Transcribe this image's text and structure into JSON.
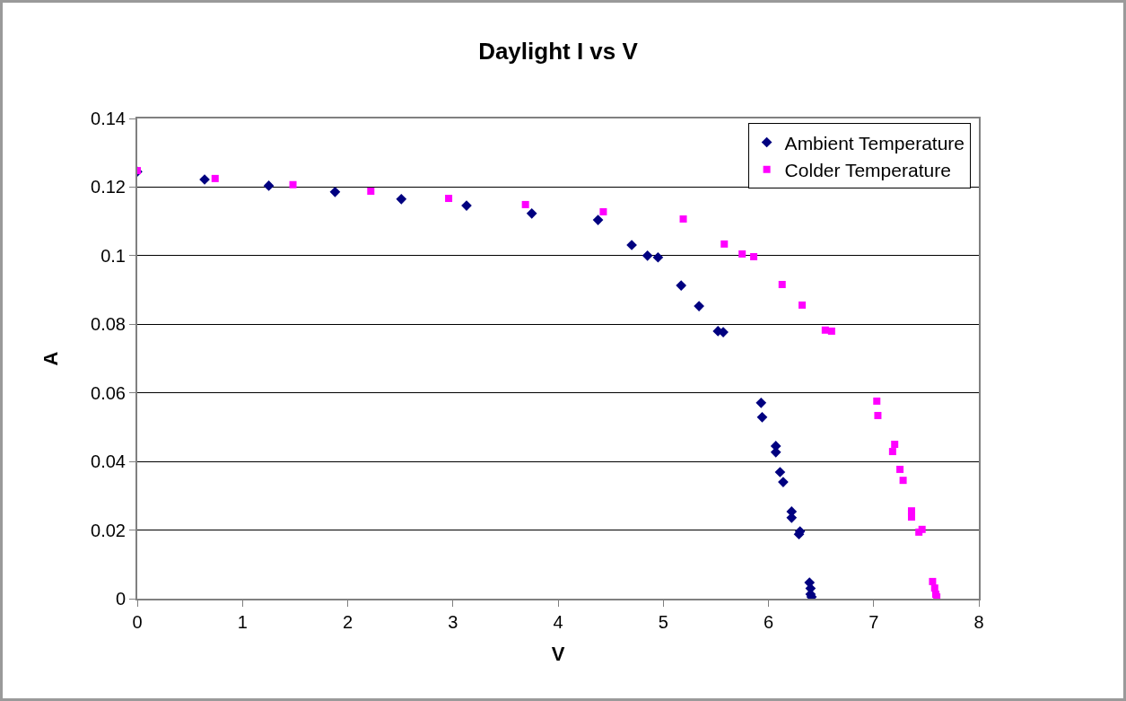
{
  "chart_data": {
    "type": "scatter",
    "title": "Daylight I vs V",
    "xlabel": "V",
    "ylabel": "A",
    "xlim": [
      0,
      8
    ],
    "xticks": [
      0,
      1,
      2,
      3,
      4,
      5,
      6,
      7,
      8
    ],
    "ylim": [
      0,
      0.14
    ],
    "yticks": [
      0,
      0.02,
      0.04,
      0.06,
      0.08,
      0.1,
      0.12,
      0.14
    ],
    "grid": "y",
    "legend": "top right",
    "series": [
      {
        "name": "Ambient Temperature",
        "color": "#000080",
        "marker": "diamond",
        "x": [
          0,
          0.64,
          1.25,
          1.88,
          2.51,
          3.13,
          3.75,
          4.38,
          4.7,
          4.85,
          4.95,
          5.17,
          5.34,
          5.52,
          5.57,
          5.93,
          5.94,
          6.07,
          6.07,
          6.11,
          6.14,
          6.22,
          6.22,
          6.29,
          6.3,
          6.39,
          6.4,
          6.4,
          6.41
        ],
        "values": [
          0.1245,
          0.1222,
          0.1204,
          0.1186,
          0.1165,
          0.1146,
          0.1123,
          0.1104,
          0.1031,
          0.1,
          0.0995,
          0.0913,
          0.0853,
          0.078,
          0.0777,
          0.0571,
          0.0529,
          0.0445,
          0.0427,
          0.0369,
          0.034,
          0.0254,
          0.0236,
          0.0188,
          0.0196,
          0.0047,
          0.003,
          0.0013,
          0.0005
        ]
      },
      {
        "name": "Colder Temperature",
        "color": "#ff00ff",
        "marker": "square",
        "x": [
          0,
          0.74,
          1.48,
          2.22,
          2.96,
          3.69,
          4.43,
          5.19,
          5.58,
          5.75,
          5.86,
          6.13,
          6.32,
          6.54,
          6.6,
          7.03,
          7.04,
          7.2,
          7.18,
          7.25,
          7.28,
          7.36,
          7.36,
          7.43,
          7.46,
          7.56,
          7.58,
          7.59,
          7.6
        ],
        "values": [
          0.1248,
          0.1225,
          0.1207,
          0.1188,
          0.1167,
          0.1149,
          0.1128,
          0.1107,
          0.1034,
          0.1005,
          0.0997,
          0.0916,
          0.0856,
          0.0783,
          0.078,
          0.0576,
          0.0534,
          0.045,
          0.0429,
          0.0377,
          0.0345,
          0.0256,
          0.0238,
          0.0194,
          0.0202,
          0.005,
          0.0031,
          0.0013,
          0.0005
        ]
      }
    ]
  }
}
